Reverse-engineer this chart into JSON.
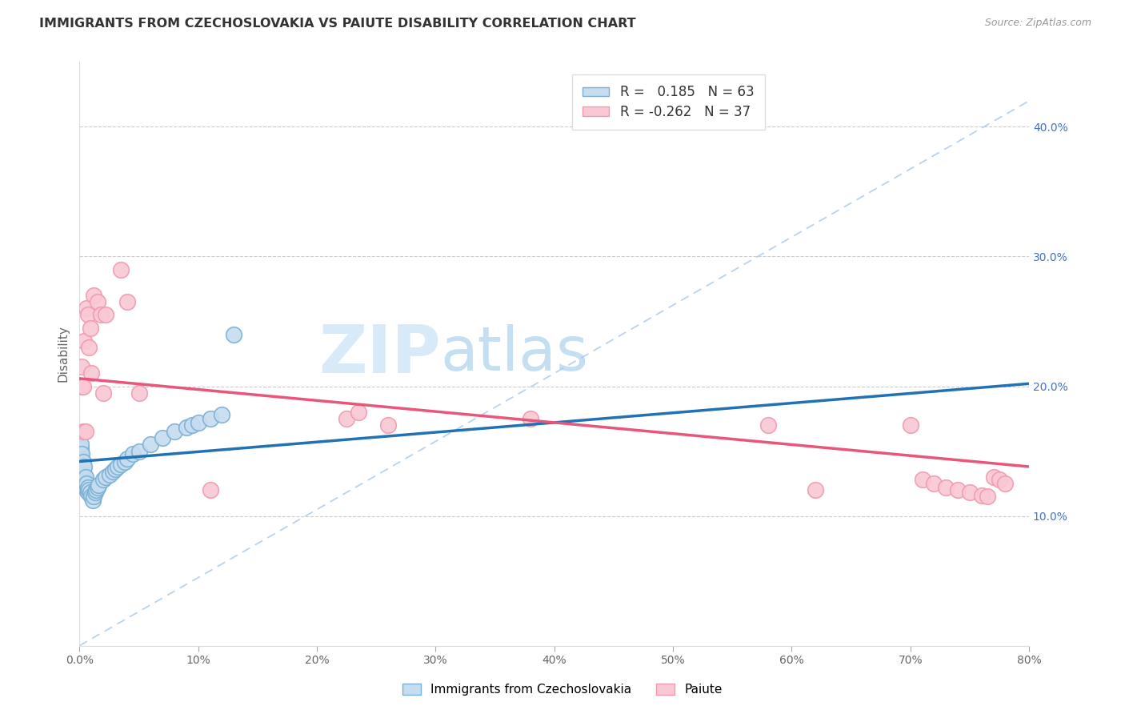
{
  "title": "IMMIGRANTS FROM CZECHOSLOVAKIA VS PAIUTE DISABILITY CORRELATION CHART",
  "source": "Source: ZipAtlas.com",
  "ylabel": "Disability",
  "legend_label1": "Immigrants from Czechoslovakia",
  "legend_label2": "Paiute",
  "R1": 0.185,
  "N1": 63,
  "R2": -0.262,
  "N2": 37,
  "blue_fill": "#c6dcf0",
  "blue_edge": "#7ab0d4",
  "pink_fill": "#f9c8d4",
  "pink_edge": "#f09ab0",
  "blue_line_color": "#2171b5",
  "pink_line_color": "#e8567a",
  "dash_line_color": "#a8c8e8",
  "xlim": [
    0.0,
    0.8
  ],
  "ylim": [
    0.0,
    0.45
  ],
  "xticks": [
    0.0,
    0.1,
    0.2,
    0.3,
    0.4,
    0.5,
    0.6,
    0.7,
    0.8
  ],
  "yticks_right": [
    0.1,
    0.2,
    0.3,
    0.4
  ],
  "blue_x": [
    0.001,
    0.001,
    0.001,
    0.001,
    0.001,
    0.001,
    0.001,
    0.001,
    0.001,
    0.001,
    0.002,
    0.002,
    0.002,
    0.002,
    0.002,
    0.002,
    0.002,
    0.002,
    0.003,
    0.003,
    0.003,
    0.003,
    0.003,
    0.004,
    0.004,
    0.004,
    0.004,
    0.005,
    0.005,
    0.005,
    0.006,
    0.006,
    0.007,
    0.007,
    0.008,
    0.009,
    0.01,
    0.011,
    0.012,
    0.013,
    0.014,
    0.015,
    0.016,
    0.02,
    0.022,
    0.025,
    0.028,
    0.03,
    0.032,
    0.035,
    0.038,
    0.04,
    0.045,
    0.05,
    0.06,
    0.07,
    0.08,
    0.09,
    0.095,
    0.1,
    0.11,
    0.12,
    0.13
  ],
  "blue_y": [
    0.13,
    0.135,
    0.138,
    0.14,
    0.142,
    0.145,
    0.148,
    0.15,
    0.152,
    0.155,
    0.125,
    0.128,
    0.132,
    0.135,
    0.138,
    0.14,
    0.143,
    0.148,
    0.128,
    0.132,
    0.135,
    0.138,
    0.142,
    0.125,
    0.128,
    0.132,
    0.138,
    0.122,
    0.125,
    0.13,
    0.12,
    0.125,
    0.118,
    0.122,
    0.12,
    0.118,
    0.115,
    0.112,
    0.115,
    0.118,
    0.12,
    0.122,
    0.124,
    0.128,
    0.13,
    0.132,
    0.134,
    0.136,
    0.138,
    0.14,
    0.142,
    0.144,
    0.148,
    0.15,
    0.155,
    0.16,
    0.165,
    0.168,
    0.17,
    0.172,
    0.175,
    0.178,
    0.24
  ],
  "pink_x": [
    0.002,
    0.002,
    0.003,
    0.003,
    0.004,
    0.005,
    0.006,
    0.007,
    0.008,
    0.009,
    0.01,
    0.012,
    0.015,
    0.018,
    0.02,
    0.022,
    0.035,
    0.04,
    0.05,
    0.11,
    0.225,
    0.235,
    0.26,
    0.38,
    0.58,
    0.62,
    0.7,
    0.71,
    0.72,
    0.73,
    0.74,
    0.75,
    0.76,
    0.765,
    0.77,
    0.775,
    0.78
  ],
  "pink_y": [
    0.2,
    0.215,
    0.165,
    0.2,
    0.235,
    0.165,
    0.26,
    0.255,
    0.23,
    0.245,
    0.21,
    0.27,
    0.265,
    0.255,
    0.195,
    0.255,
    0.29,
    0.265,
    0.195,
    0.12,
    0.175,
    0.18,
    0.17,
    0.175,
    0.17,
    0.12,
    0.17,
    0.128,
    0.125,
    0.122,
    0.12,
    0.118,
    0.116,
    0.115,
    0.13,
    0.128,
    0.125
  ],
  "watermark_zip": "ZIP",
  "watermark_atlas": "atlas",
  "watermark_color_zip": "#ddeef8",
  "watermark_color_atlas": "#c8dff0"
}
